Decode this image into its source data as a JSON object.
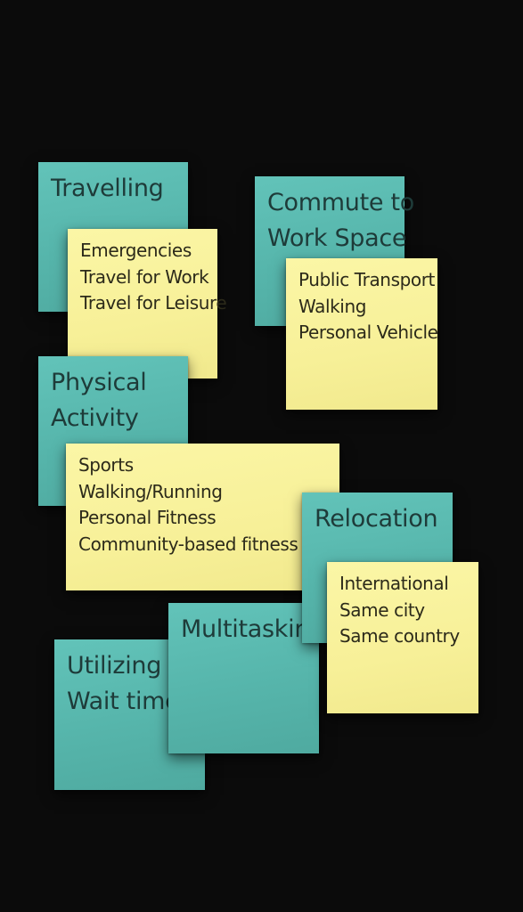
{
  "background_color": "#0b0b0b",
  "colors": {
    "teal_note": "#58b8ae",
    "yellow_note": "#f7f09a"
  },
  "notes": {
    "travelling": {
      "title": "Travelling",
      "items": [
        "Emergencies",
        "Travel for Work",
        "Travel for Leisure"
      ]
    },
    "commute": {
      "title_lines": [
        "Commute to",
        "Work Space"
      ],
      "items": [
        "Public Transport",
        "Walking",
        "Personal Vehicle"
      ]
    },
    "physical_activity": {
      "title_lines": [
        "Physical",
        "Activity"
      ],
      "items": [
        "Sports",
        "Walking/Running",
        "Personal Fitness",
        "Community-based fitness"
      ]
    },
    "relocation": {
      "title": "Relocation",
      "items": [
        "International",
        "Same city",
        "Same country"
      ]
    },
    "multitasking": {
      "title": "Multitasking"
    },
    "utilizing": {
      "title_lines": [
        "Utilizing",
        "Wait times"
      ]
    }
  }
}
